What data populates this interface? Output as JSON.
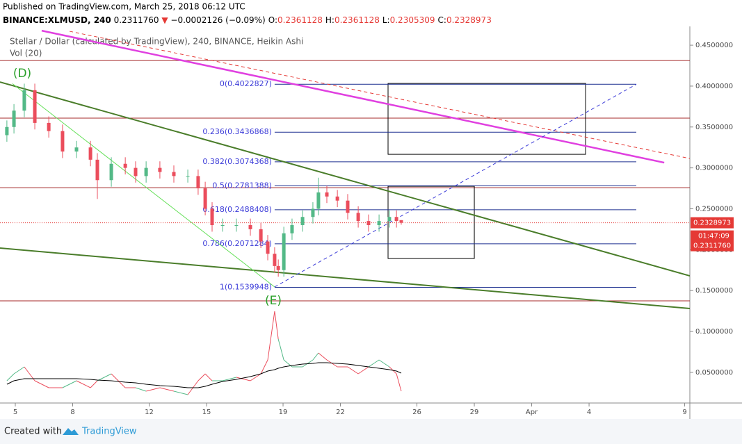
{
  "header": {
    "published": "Published on TradingView.com, March 25, 2018 06:12 UTC",
    "symbol": "BINANCE:XLMUSD, 240",
    "last": "0.2311760",
    "arrow": "▼",
    "change": "−0.0002126 (−0.09%)",
    "ohlc": [
      {
        "label": "O:",
        "value": "0.2361128"
      },
      {
        "label": "H:",
        "value": "0.2361128"
      },
      {
        "label": "L:",
        "value": "0.2305309"
      },
      {
        "label": "C:",
        "value": "0.2328973"
      }
    ]
  },
  "footer": {
    "created": "Created with",
    "brand": "TradingView"
  },
  "chart_data": {
    "type": "candlestick",
    "title": "Stellar / Dollar (calculated by TradingView), 240, BINANCE, Heikin Ashi",
    "indicator": "Vol (20)",
    "up_color": "#53b987",
    "down_color": "#eb4d5c",
    "ma_color": "#000000",
    "x": [
      4.56,
      4.93,
      5.47,
      6.02,
      6.75,
      7.47,
      8.2,
      8.93,
      9.29,
      10.02,
      10.75,
      11.29,
      11.84,
      12.56,
      13.29,
      14.02,
      14.56,
      14.93,
      15.29,
      15.84,
      16.56,
      17.29,
      17.84,
      18.2,
      18.56,
      18.75,
      19.04,
      19.47,
      20.02,
      20.56,
      20.85,
      21.29,
      21.84,
      22.38,
      22.93,
      23.47,
      24.02,
      24.56,
      24.93,
      25.18
    ],
    "open": [
      0.34,
      0.35,
      0.37,
      0.395,
      0.355,
      0.345,
      0.32,
      0.325,
      0.31,
      0.285,
      0.305,
      0.3,
      0.29,
      0.3,
      0.295,
      0.29,
      0.29,
      0.275,
      0.25,
      0.23,
      0.23,
      0.23,
      0.225,
      0.21,
      0.195,
      0.18,
      0.175,
      0.22,
      0.23,
      0.24,
      0.25,
      0.27,
      0.265,
      0.26,
      0.245,
      0.235,
      0.23,
      0.235,
      0.24,
      0.2361128
    ],
    "high": [
      0.358,
      0.378,
      0.403,
      0.403,
      0.363,
      0.353,
      0.333,
      0.333,
      0.318,
      0.313,
      0.313,
      0.308,
      0.308,
      0.308,
      0.303,
      0.298,
      0.298,
      0.283,
      0.258,
      0.238,
      0.238,
      0.238,
      0.233,
      0.218,
      0.203,
      0.188,
      0.228,
      0.238,
      0.248,
      0.258,
      0.288,
      0.278,
      0.273,
      0.268,
      0.253,
      0.243,
      0.243,
      0.248,
      0.248,
      0.2361128
    ],
    "low": [
      0.332,
      0.342,
      0.362,
      0.347,
      0.337,
      0.312,
      0.312,
      0.302,
      0.262,
      0.277,
      0.292,
      0.282,
      0.282,
      0.287,
      0.282,
      0.282,
      0.267,
      0.242,
      0.222,
      0.222,
      0.222,
      0.217,
      0.202,
      0.187,
      0.172,
      0.167,
      0.167,
      0.212,
      0.222,
      0.232,
      0.242,
      0.257,
      0.252,
      0.237,
      0.227,
      0.222,
      0.222,
      0.227,
      0.227,
      0.2305309
    ],
    "close": [
      0.35,
      0.37,
      0.395,
      0.355,
      0.345,
      0.32,
      0.325,
      0.31,
      0.285,
      0.305,
      0.3,
      0.29,
      0.3,
      0.295,
      0.29,
      0.29,
      0.275,
      0.25,
      0.23,
      0.23,
      0.23,
      0.225,
      0.21,
      0.195,
      0.18,
      0.175,
      0.22,
      0.23,
      0.24,
      0.25,
      0.27,
      0.265,
      0.26,
      0.245,
      0.235,
      0.23,
      0.235,
      0.24,
      0.235,
      0.2328973
    ],
    "volume": [
      3,
      4,
      5,
      3,
      2,
      2,
      3,
      2,
      3,
      4,
      2,
      2,
      1.5,
      2,
      1.5,
      1,
      3,
      4,
      3,
      3,
      3.5,
      3,
      4,
      6,
      13,
      9,
      6,
      5,
      5,
      6,
      7,
      6,
      5,
      5,
      4,
      5,
      6,
      5,
      4,
      1.5
    ],
    "volume_ma": [
      2.5,
      3,
      3.3,
      3.3,
      3.3,
      3.3,
      3.3,
      3.2,
      3.1,
      3,
      2.8,
      2.7,
      2.5,
      2.3,
      2.2,
      2.0,
      2.0,
      2.2,
      2.5,
      2.9,
      3.2,
      3.6,
      4.0,
      4.4,
      4.6,
      4.8,
      5.0,
      5.2,
      5.4,
      5.5,
      5.6,
      5.6,
      5.5,
      5.4,
      5.2,
      5.0,
      4.8,
      4.6,
      4.4,
      4.1
    ],
    "xlim": [
      4.2,
      40.27
    ],
    "ylim": [
      0.0125,
      0.473
    ],
    "xticks": [
      5,
      8,
      12,
      15,
      19,
      22,
      26,
      29,
      {
        "value": 32,
        "label": "Apr"
      },
      {
        "value": 35,
        "label": "4"
      },
      {
        "value": 40,
        "label": "9"
      }
    ],
    "yticks": [
      {
        "value": 0.05,
        "label": "0.0500000"
      },
      {
        "value": 0.1,
        "label": "0.1000000"
      },
      {
        "value": 0.15,
        "label": "0.1500000"
      },
      {
        "value": 0.2,
        "label": "0.2000000"
      },
      {
        "value": 0.25,
        "label": "0.2500000"
      },
      {
        "value": 0.3,
        "label": "0.3000000"
      },
      {
        "value": 0.35,
        "label": "0.3500000"
      },
      {
        "value": 0.4,
        "label": "0.4000000"
      },
      {
        "value": 0.45,
        "label": "0.4500000"
      }
    ],
    "fib": {
      "x": [
        18.56,
        37.47
      ],
      "color": "#1c2f8f",
      "levels": [
        {
          "label": "0(0.4022827)",
          "value": 0.4022827
        },
        {
          "label": "0.236(0.3436868)",
          "value": 0.3436868
        },
        {
          "label": "0.382(0.3074368)",
          "value": 0.3074368
        },
        {
          "label": "0.5(0.2781388)",
          "value": 0.2781388
        },
        {
          "label": "0.618(0.2488408)",
          "value": 0.2488408
        },
        {
          "label": "0.786(0.2071284)",
          "value": 0.2071284
        },
        {
          "label": "1(0.1539948)",
          "value": 0.1539948
        }
      ]
    },
    "trendlines": [
      {
        "x": [
          6.38,
          38.93
        ],
        "y": [
          0.4678,
          0.3064
        ],
        "color": "#e040e0",
        "width": 2.5
      },
      {
        "x": [
          7.84,
          40.27
        ],
        "y": [
          0.467,
          0.3115
        ],
        "color": "#e53935",
        "width": 1,
        "dashed": true
      },
      {
        "x": [
          4.2,
          40.27
        ],
        "y": [
          0.405,
          0.168
        ],
        "color": "#4a7d2a",
        "width": 2
      },
      {
        "x": [
          4.2,
          40.27
        ],
        "y": [
          0.202,
          0.128
        ],
        "color": "#4a7d2a",
        "width": 2
      },
      {
        "x": [
          4.85,
          18.56
        ],
        "y": [
          0.403,
          0.1544
        ],
        "color": "#66e05a",
        "width": 1
      },
      {
        "x": [
          18.56,
          37.47
        ],
        "y": [
          0.1544,
          0.4022
        ],
        "color": "#3b3bd8",
        "width": 1,
        "dashed": true
      }
    ],
    "hlines": {
      "color": "#a52a2a",
      "values": [
        0.4313,
        0.3608,
        0.2758,
        0.1374
      ]
    },
    "rectangles": [
      {
        "x": [
          24.49,
          34.82
        ],
        "y": [
          0.4033,
          0.3166
        ]
      },
      {
        "x": [
          24.49,
          29.0
        ],
        "y": [
          0.2775,
          0.1892
        ]
      }
    ],
    "annotations": [
      "(D)",
      "(E)"
    ],
    "price_tag": {
      "value": 0.2328973,
      "label": "0.2328973",
      "countdown": "01:47:09",
      "last": "0.2311760"
    }
  }
}
